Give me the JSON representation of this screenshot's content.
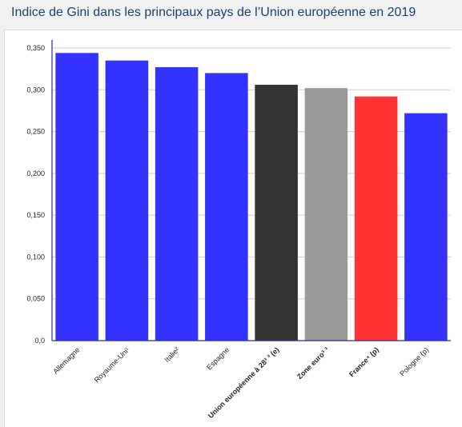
{
  "page": {
    "title": "Indice de Gini dans les principaux pays de l’Union européenne en 2019"
  },
  "chart_data": {
    "type": "bar",
    "title": "Indice de Gini dans les principaux pays de l’Union européenne en 2019",
    "xlabel": "",
    "ylabel": "",
    "ylim": [
      0,
      0.35
    ],
    "yticks": [
      "0,0",
      "0,050",
      "0,100",
      "0,150",
      "0,200",
      "0,250",
      "0,300",
      "0,350"
    ],
    "grid": true,
    "legend": "none",
    "categories": [
      "Allemagne",
      "Royaume-Uni¹",
      "Italie²",
      "Espagne",
      "Union européenne à 28³ ³ (e)",
      "Zone euro³ ³",
      "France⁴ (p)",
      "Pologne (p)"
    ],
    "bold_categories": [
      false,
      false,
      false,
      false,
      true,
      true,
      true,
      false
    ],
    "values": [
      0.344,
      0.335,
      0.327,
      0.32,
      0.306,
      0.302,
      0.292,
      0.272
    ],
    "colors": [
      "#3333ff",
      "#3333ff",
      "#3333ff",
      "#3333ff",
      "#333333",
      "#999999",
      "#ff3333",
      "#3333ff"
    ]
  }
}
